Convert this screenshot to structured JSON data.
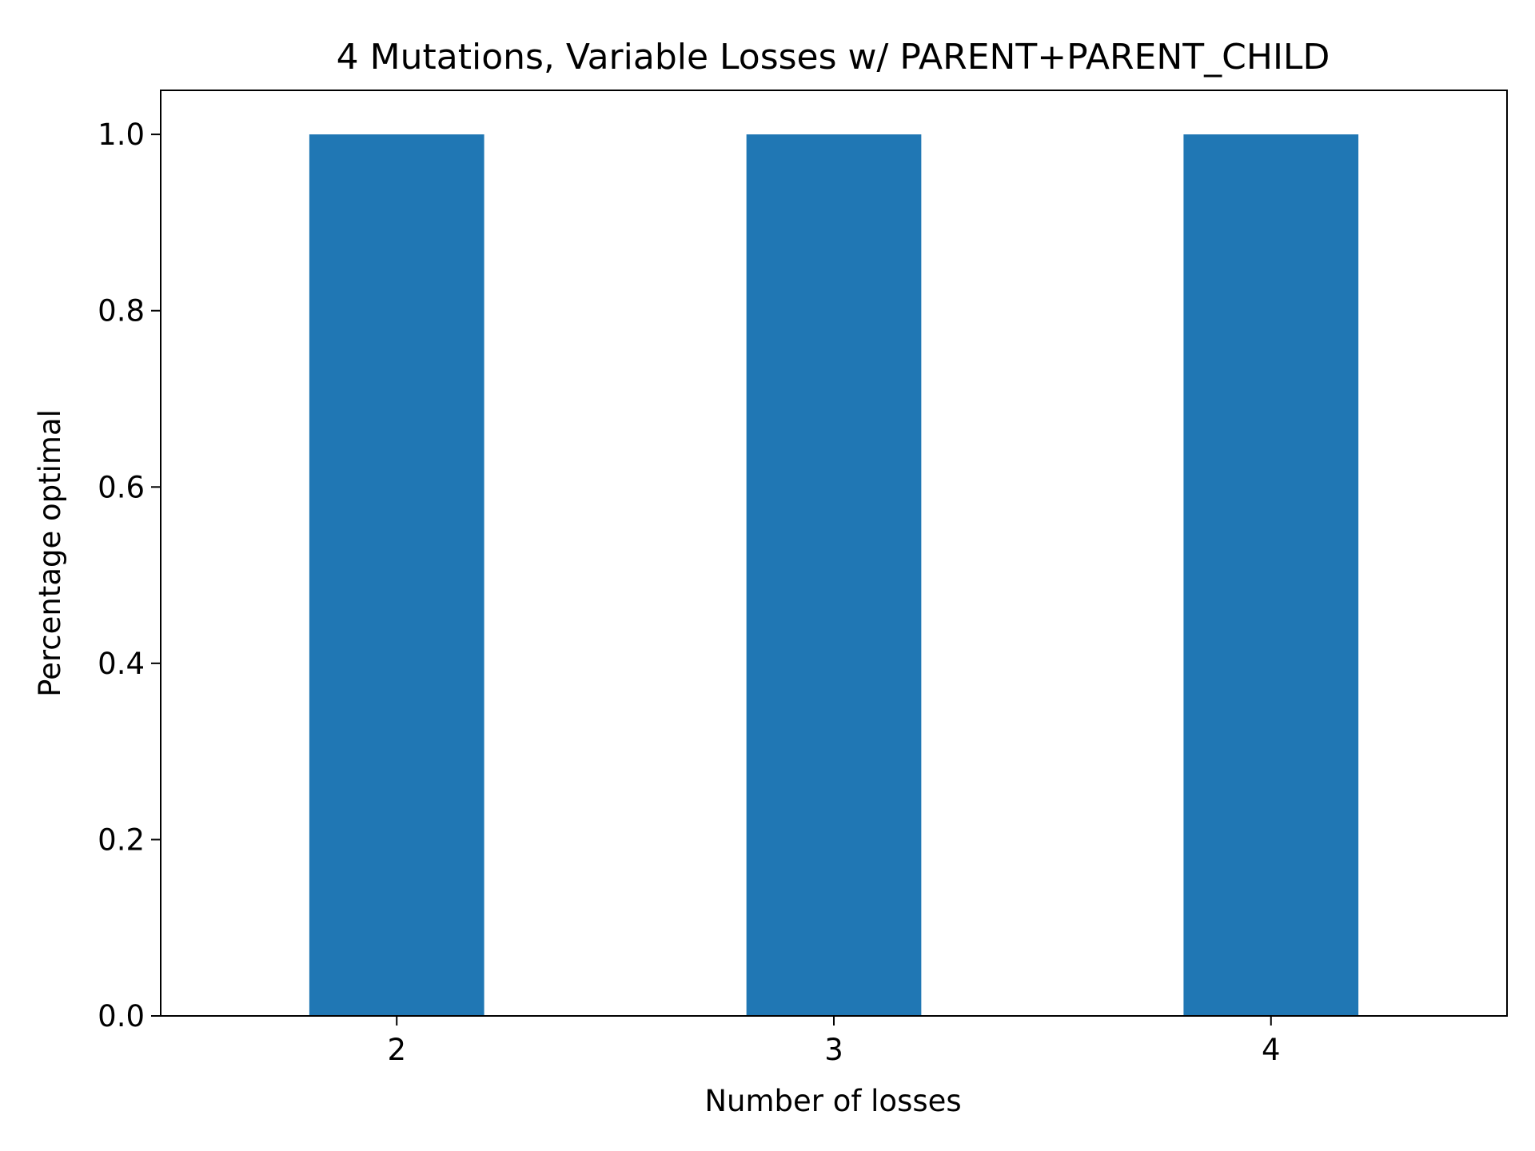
{
  "chart_data": {
    "type": "bar",
    "title": "4 Mutations, Variable Losses w/ PARENT+PARENT_CHILD",
    "xlabel": "Number of losses",
    "ylabel": "Percentage optimal",
    "categories": [
      "2",
      "3",
      "4"
    ],
    "values": [
      1.0,
      1.0,
      1.0
    ],
    "ylim": [
      0.0,
      1.05
    ],
    "yticks": [
      "0.0",
      "0.2",
      "0.4",
      "0.6",
      "0.8",
      "1.0"
    ],
    "grid": false,
    "legend": "none",
    "bar_color": "#2077b4"
  }
}
